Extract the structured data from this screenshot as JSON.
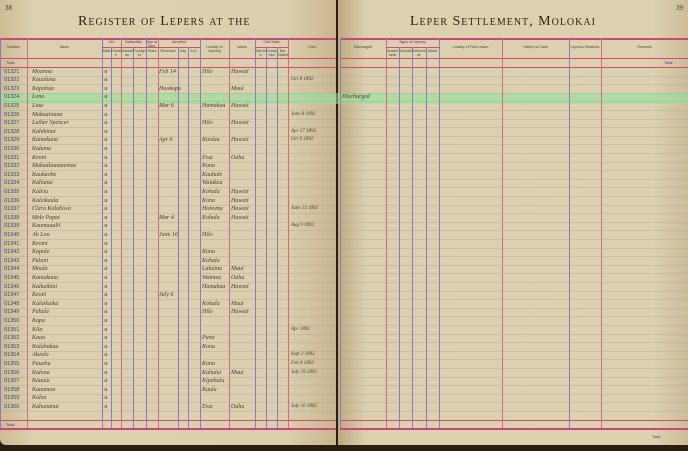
{
  "left_page": {
    "page_number": "38",
    "title": "Register of Lepers at the",
    "total_label": "Total",
    "columns": [
      {
        "label": "Number"
      },
      {
        "label": "Name"
      },
      {
        "label": "Sex",
        "sub": [
          "Male",
          "Female"
        ]
      },
      {
        "label": "Nationality",
        "sub": [
          "Hawaiian",
          "Foreigner"
        ]
      },
      {
        "label": "Age at Adm.",
        "sub": [
          "Years"
        ]
      },
      {
        "label": "Admitted",
        "sub": [
          "Received",
          "Day",
          "A.D."
        ]
      },
      {
        "label": "Locality of Leprosy"
      },
      {
        "label": "Island"
      },
      {
        "label": "Civil State",
        "sub": [
          "Married",
          "Unmarried",
          "Not Stated"
        ]
      },
      {
        "label": "Died"
      }
    ]
  },
  "right_page": {
    "page_number": "39",
    "title": "Leper Settlement, Molokai",
    "total_label": "Total",
    "columns": [
      {
        "label": "Discharged"
      },
      {
        "label": "Signs of Leprosy",
        "sub": [
          "Anaesthetic",
          "Nodular",
          "Tubercular",
          "Mixed"
        ]
      },
      {
        "label": "Locality of First Lesion"
      },
      {
        "label": "History of Case"
      },
      {
        "label": "Leprous Relatives"
      },
      {
        "label": "Remarks"
      }
    ]
  },
  "rows": [
    {
      "number": "01321",
      "name": "Moanoa",
      "admitted": "Feb 14",
      "locality": "Hilo",
      "island": "Hawaii",
      "died": ""
    },
    {
      "number": "01322",
      "name": "Kaualuna",
      "died": "Oct 8 1892"
    },
    {
      "number": "01323",
      "name": "Kapahaa",
      "admitted": "Hookupu",
      "island": "Maui"
    },
    {
      "number": "01324",
      "name": "Lono",
      "discharged": "Discharged"
    },
    {
      "number": "01325",
      "name": "Liaa",
      "admitted": "Mar 6",
      "locality": "Hamakua",
      "island": "Hawaii"
    },
    {
      "number": "01326",
      "name": "Makaainana",
      "died": "June 8 1892"
    },
    {
      "number": "01327",
      "name": "Luther Spencer",
      "locality": "Hilo",
      "island": "Hawaii"
    },
    {
      "number": "01328",
      "name": "Kahikinui",
      "died": "Apr 27 1893"
    },
    {
      "number": "01329",
      "name": "Kamakana",
      "admitted": "Apr 6",
      "locality": "Koolau",
      "island": "Hawaii",
      "died": "Oct 9 1892"
    },
    {
      "number": "01330",
      "name": "Kalama"
    },
    {
      "number": "01331",
      "name": "Keoni",
      "locality": "Ewa",
      "island": "Oahu"
    },
    {
      "number": "01332",
      "name": "Makaalaumaemae",
      "locality": "Kona"
    },
    {
      "number": "01333",
      "name": "Kaukaohe",
      "locality": "Kauhale"
    },
    {
      "number": "01334",
      "name": "Kahiana",
      "locality": "Waiakea"
    },
    {
      "number": "01335",
      "name": "Kaleiu",
      "locality": "Kohala",
      "island": "Hawaii"
    },
    {
      "number": "01336",
      "name": "Kaleikaula",
      "locality": "Kona",
      "island": "Hawaii"
    },
    {
      "number": "01337",
      "name": "Clara Kalahiwa",
      "locality": "Honomu",
      "island": "Hawaii",
      "died": "June 13 1892"
    },
    {
      "number": "01338",
      "name": "Mele Papai",
      "admitted": "Mar 4",
      "locality": "Kohala",
      "island": "Hawaii"
    },
    {
      "number": "01339",
      "name": "Kaumuaalii",
      "died": "Aug 9 1892"
    },
    {
      "number": "01340",
      "name": "Ah Loo",
      "admitted": "June 16",
      "locality": "Hilo"
    },
    {
      "number": "01341",
      "name": "Keomi"
    },
    {
      "number": "01342",
      "name": "Kapule",
      "locality": "Kona"
    },
    {
      "number": "01343",
      "name": "Palani",
      "locality": "Kohala"
    },
    {
      "number": "01344",
      "name": "Moala",
      "locality": "Lahaina",
      "island": "Maui"
    },
    {
      "number": "01345",
      "name": "Kamakana",
      "locality": "Waimea",
      "island": "Oahu"
    },
    {
      "number": "01346",
      "name": "Kaikaikini",
      "locality": "Hamakua",
      "island": "Hawaii"
    },
    {
      "number": "01347",
      "name": "Keoni",
      "admitted": "July 6"
    },
    {
      "number": "01348",
      "name": "Kalaikaika",
      "locality": "Kohala",
      "island": "Maui"
    },
    {
      "number": "01349",
      "name": "Pahale",
      "locality": "Hilo",
      "island": "Hawaii"
    },
    {
      "number": "01350",
      "name": "Kapa"
    },
    {
      "number": "01351",
      "name": "Kila",
      "died": "Apr 1893"
    },
    {
      "number": "01352",
      "name": "Kaaa",
      "locality": "Puna"
    },
    {
      "number": "01353",
      "name": "Kalahakua",
      "locality": "Kona"
    },
    {
      "number": "01354",
      "name": "Akeolo",
      "died": "Sept 2 1892"
    },
    {
      "number": "01355",
      "name": "Pauahu",
      "locality": "Kona",
      "died": "Feb 8 1893"
    },
    {
      "number": "01356",
      "name": "Kalona",
      "locality": "Kahului",
      "island": "Maui",
      "died": "July 19 1892"
    },
    {
      "number": "01357",
      "name": "Kaaaia",
      "locality": "Kipahulu"
    },
    {
      "number": "01358",
      "name": "Kaaumoa",
      "locality": "Kaulu"
    },
    {
      "number": "01359",
      "name": "Kolea"
    },
    {
      "number": "01360",
      "name": "Kahunanui",
      "locality": "Ewa",
      "island": "Oahu",
      "died": "July 16 1892"
    }
  ],
  "colors": {
    "ruling_red": "#d04a7c",
    "ruling_blue": "#8a7bc4",
    "paper": "#dccfad",
    "highlight": "#8ce696"
  }
}
